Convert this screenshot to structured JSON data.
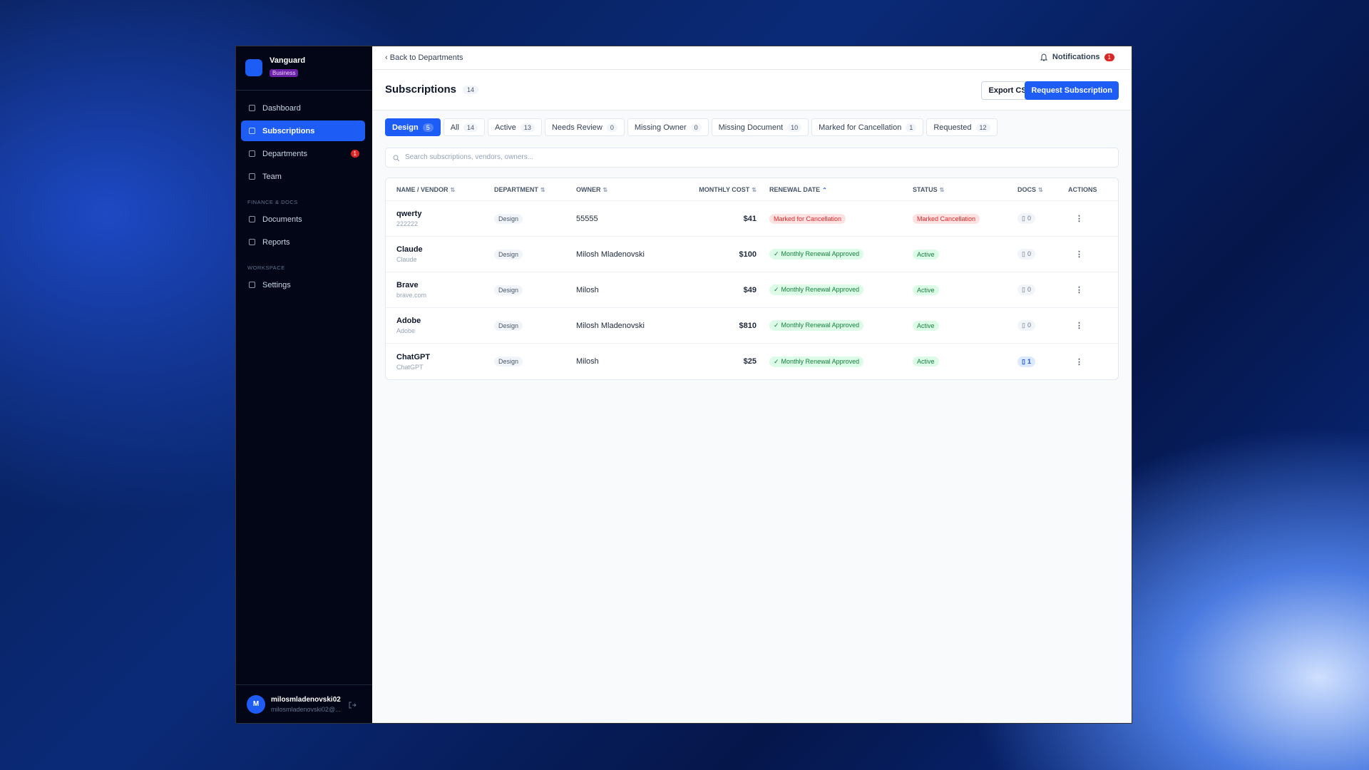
{
  "sidebar": {
    "brand": "Vanguard",
    "plan": "Business",
    "groups": [
      {
        "items": [
          {
            "label": "Dashboard"
          },
          {
            "label": "Subscriptions",
            "active": true
          },
          {
            "label": "Departments",
            "badge": "1"
          },
          {
            "label": "Team"
          }
        ]
      },
      {
        "title": "FINANCE & DOCS",
        "items": [
          {
            "label": "Documents"
          },
          {
            "label": "Reports"
          }
        ]
      },
      {
        "title": "WORKSPACE",
        "items": [
          {
            "label": "Settings"
          }
        ]
      }
    ],
    "user": {
      "initial": "M",
      "name": "milosmladenovski02",
      "email": "milosmladenovski02@..."
    }
  },
  "header": {
    "back": "Back to Departments",
    "notifications": "Notifications",
    "notification_count": "1"
  },
  "page": {
    "title": "Subscriptions",
    "count": 14,
    "buttons": [
      "Export CSV",
      "Request Subscription"
    ]
  },
  "tabs": [
    {
      "label": "Design",
      "count": 5,
      "active": true
    },
    {
      "label": "All",
      "count": 14
    },
    {
      "label": "Active",
      "count": 13
    },
    {
      "label": "Needs Review",
      "count": 0
    },
    {
      "label": "Missing Owner",
      "count": 0
    },
    {
      "label": "Missing Document",
      "count": 10
    },
    {
      "label": "Marked for Cancellation",
      "count": 1
    },
    {
      "label": "Requested",
      "count": 12
    }
  ],
  "search": {
    "placeholder": "Search subscriptions, vendors, owners..."
  },
  "table": {
    "columns": [
      "NAME / VENDOR",
      "DEPARTMENT",
      "OWNER",
      "MONTHLY COST",
      "RENEWAL DATE",
      "STATUS",
      "DOCS",
      "ACTIONS"
    ],
    "rows": [
      {
        "name": "qwerty",
        "vendor": "222222",
        "department": "Design",
        "owner": "55555",
        "cost": "$41",
        "renewal": "Marked for Cancellation",
        "status": "Marked Cancellation",
        "color": "#dc2626",
        "docs": 0
      },
      {
        "name": "Claude",
        "vendor": "Claude",
        "department": "Design",
        "owner": "Milosh Mladenovski",
        "cost": "$100",
        "renewal": "Monthly Renewal Approved",
        "status": "Active",
        "color": "#15803d",
        "docs": 0
      },
      {
        "name": "Brave",
        "vendor": "brave.com",
        "department": "Design",
        "owner": "Milosh",
        "cost": "$49",
        "renewal": "Monthly Renewal Approved",
        "status": "Active",
        "color": "#15803d",
        "docs": 0
      },
      {
        "name": "Adobe",
        "vendor": "Adobe",
        "department": "Design",
        "owner": "Milosh Mladenovski",
        "cost": "$810",
        "renewal": "Monthly Renewal Approved",
        "status": "Active",
        "color": "#15803d",
        "docs": 0
      },
      {
        "name": "ChatGPT",
        "vendor": "ChatGPT",
        "department": "Design",
        "owner": "Milosh",
        "cost": "$25",
        "renewal": "Monthly Renewal Approved",
        "status": "Active",
        "color": "#15803d",
        "docs": 1
      }
    ]
  }
}
